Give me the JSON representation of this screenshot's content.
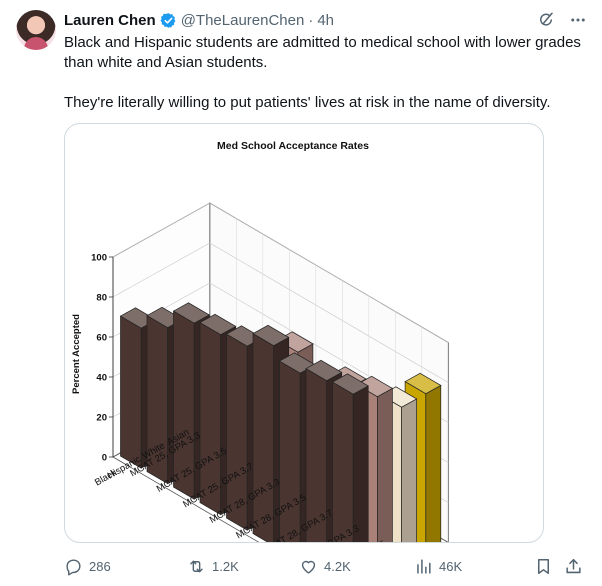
{
  "post": {
    "author_name": "Lauren Chen",
    "handle": "@TheLaurenChen",
    "separator": "·",
    "time": "4h",
    "paragraphs": [
      "Black and Hispanic students are admitted to medical school with lower grades than white and Asian students.",
      "They're literally willing to put patients' lives at risk in the name of diversity."
    ]
  },
  "icons": {
    "verified": "verified-badge-icon",
    "grok": "grok-icon",
    "more": "more-icon",
    "reply": "reply-icon",
    "retweet": "retweet-icon",
    "like": "like-icon",
    "views": "views-icon",
    "bookmark": "bookmark-icon",
    "share": "share-icon"
  },
  "actions": {
    "replies": "286",
    "reposts": "1.2K",
    "likes": "4.2K",
    "views": "46K"
  },
  "colors": {
    "verified": "#1d9bf0",
    "black_series": "#4a3530",
    "hispanic_series": "#a98178",
    "white_series": "#efe0c8",
    "asian_series": "#c9a500"
  },
  "chart_data": {
    "type": "bar",
    "title": "Med School Acceptance Rates",
    "ylabel": "Percent Accepted",
    "ylim": [
      0,
      100
    ],
    "yticks": [
      "0",
      "20",
      "40",
      "60",
      "80",
      "100"
    ],
    "categories": [
      "MCAT 25, GPA 3.3",
      "MCAT 25, GPA 3.5",
      "MCAT 25, GPA 3.7",
      "MCAT 28, GPA 3.3",
      "MCAT 28, GPA 3.5",
      "MCAT 28, GPA 3.7",
      "MCAT 31, GPA 3.3",
      "MCAT 31, GPA 3.5",
      "MCAT 31, GPA 3.7"
    ],
    "series": [
      {
        "name": "Black",
        "values": [
          70,
          78,
          88,
          90,
          92,
          100,
          94,
          98,
          99
        ]
      },
      {
        "name": "Hispanic",
        "values": [
          30,
          56,
          66,
          67,
          84,
          90,
          74,
          88,
          91
        ]
      },
      {
        "name": "White",
        "values": [
          8,
          17,
          24,
          26,
          43,
          54,
          45,
          60,
          79
        ]
      },
      {
        "name": "Asian",
        "values": [
          3,
          8,
          17,
          22,
          38,
          52,
          47,
          62,
          79
        ]
      }
    ]
  }
}
